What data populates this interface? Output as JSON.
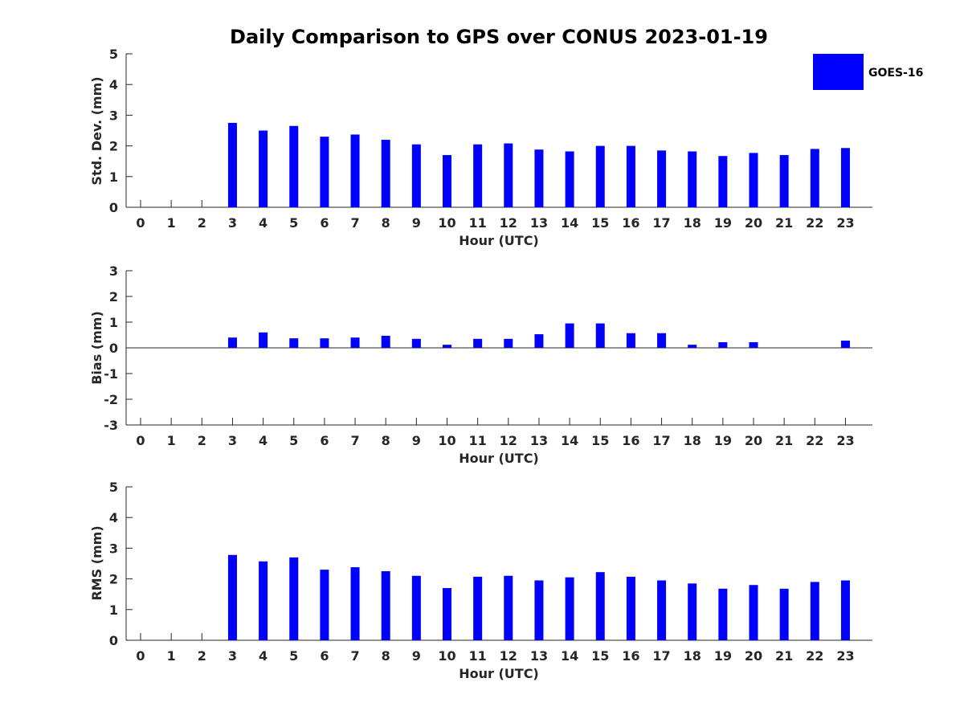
{
  "figure": {
    "title": "Daily Comparison to GPS over CONUS 2023-01-19"
  },
  "legend": {
    "label": "GOES-16",
    "color": "#0000ff"
  },
  "chart_data": [
    {
      "type": "bar",
      "title": "Daily Comparison to GPS over CONUS 2023-01-19",
      "xlabel": "Hour (UTC)",
      "ylabel": "Std. Dev. (mm)",
      "ylim": [
        0,
        5
      ],
      "yticks": [
        "0",
        "1",
        "2",
        "3",
        "4",
        "5"
      ],
      "categories": [
        "0",
        "1",
        "2",
        "3",
        "4",
        "5",
        "6",
        "7",
        "8",
        "9",
        "10",
        "11",
        "12",
        "13",
        "14",
        "15",
        "16",
        "17",
        "18",
        "19",
        "20",
        "21",
        "22",
        "23"
      ],
      "series": [
        {
          "name": "GOES-16",
          "color": "#0000ff",
          "values": [
            null,
            null,
            null,
            2.75,
            2.5,
            2.65,
            2.3,
            2.37,
            2.2,
            2.05,
            1.7,
            2.05,
            2.08,
            1.88,
            1.82,
            2.0,
            2.0,
            1.85,
            1.82,
            1.67,
            1.77,
            1.7,
            1.9,
            1.93
          ]
        }
      ]
    },
    {
      "type": "bar",
      "xlabel": "Hour (UTC)",
      "ylabel": "Bias (mm)",
      "ylim": [
        -3,
        3
      ],
      "yticks": [
        "-3",
        "-2",
        "-1",
        "0",
        "1",
        "2",
        "3"
      ],
      "categories": [
        "0",
        "1",
        "2",
        "3",
        "4",
        "5",
        "6",
        "7",
        "8",
        "9",
        "10",
        "11",
        "12",
        "13",
        "14",
        "15",
        "16",
        "17",
        "18",
        "19",
        "20",
        "21",
        "22",
        "23"
      ],
      "series": [
        {
          "name": "GOES-16",
          "color": "#0000ff",
          "values": [
            null,
            null,
            null,
            0.4,
            0.6,
            0.37,
            0.37,
            0.4,
            0.47,
            0.35,
            0.12,
            0.35,
            0.35,
            0.53,
            0.95,
            0.95,
            0.57,
            0.57,
            0.12,
            0.22,
            0.22,
            0.0,
            0.0,
            0.28
          ]
        }
      ]
    },
    {
      "type": "bar",
      "xlabel": "Hour (UTC)",
      "ylabel": "RMS (mm)",
      "ylim": [
        0,
        5
      ],
      "yticks": [
        "0",
        "1",
        "2",
        "3",
        "4",
        "5"
      ],
      "categories": [
        "0",
        "1",
        "2",
        "3",
        "4",
        "5",
        "6",
        "7",
        "8",
        "9",
        "10",
        "11",
        "12",
        "13",
        "14",
        "15",
        "16",
        "17",
        "18",
        "19",
        "20",
        "21",
        "22",
        "23"
      ],
      "series": [
        {
          "name": "GOES-16",
          "color": "#0000ff",
          "values": [
            null,
            null,
            null,
            2.78,
            2.57,
            2.7,
            2.3,
            2.38,
            2.25,
            2.1,
            1.7,
            2.07,
            2.1,
            1.95,
            2.05,
            2.22,
            2.07,
            1.95,
            1.85,
            1.68,
            1.8,
            1.68,
            1.9,
            1.95
          ]
        }
      ]
    }
  ]
}
